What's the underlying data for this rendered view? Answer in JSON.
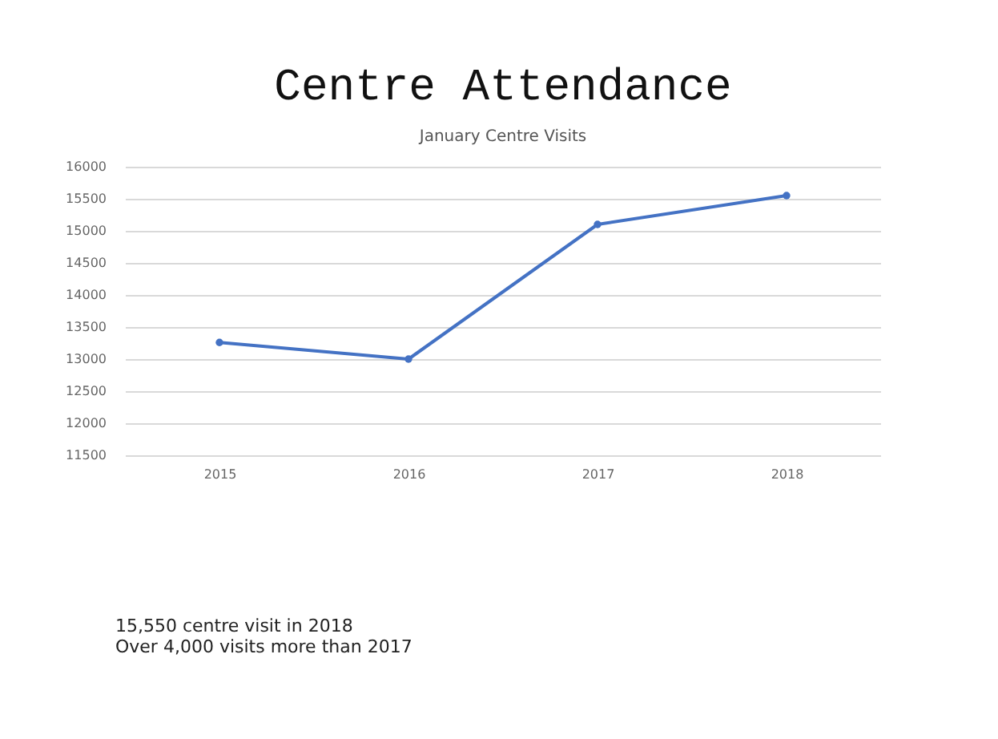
{
  "chart_data": {
    "type": "line",
    "title": "Centre Attendance",
    "subtitle": "January Centre Visits",
    "categories": [
      "2015",
      "2016",
      "2017",
      "2018"
    ],
    "series": [
      {
        "color": "#4472c4",
        "values": [
          13260,
          13000,
          15100,
          15550
        ]
      }
    ],
    "ylim": [
      11500,
      16000
    ],
    "yticks": [
      11500,
      12000,
      12500,
      13000,
      13500,
      14000,
      14500,
      15000,
      15500,
      16000
    ],
    "grid": "y",
    "marker": "circle",
    "line_style": "solid",
    "annotations": [
      "15,550 centre visit in 2018",
      "Over 4,000 visits more than 2017"
    ]
  }
}
